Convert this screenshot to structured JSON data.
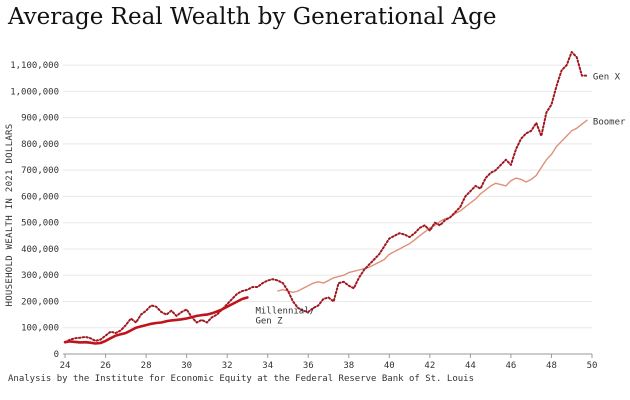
{
  "chart_data": {
    "type": "line",
    "title": "Average Real Wealth by Generational Age",
    "ylabel": "HOUSEHOLD WEALTH IN 2021 DOLLARS",
    "xlabel": "",
    "footnote": "Analysis by the Institute for Economic Equity at the Federal Reserve Bank of St. Louis",
    "xlim": [
      23.9,
      50
    ],
    "ylim": [
      0,
      1150000
    ],
    "xticks": [
      24,
      26,
      28,
      30,
      32,
      34,
      36,
      38,
      40,
      42,
      44,
      46,
      48,
      50
    ],
    "yticks": [
      0,
      100000,
      200000,
      300000,
      400000,
      500000,
      600000,
      700000,
      800000,
      900000,
      1000000,
      1100000
    ],
    "ytick_labels": [
      "0",
      "100,000",
      "200,000",
      "300,000",
      "400,000",
      "500,000",
      "600,000",
      "700,000",
      "800,000",
      "900,000",
      "1,000,000",
      "1,100,000"
    ],
    "grid": "horizontal",
    "legend": "direct-labels",
    "series": [
      {
        "name": "Gen X",
        "style": "dotted",
        "color": "#a01820",
        "x": [
          24.0,
          24.25,
          24.5,
          24.75,
          25.0,
          25.25,
          25.5,
          25.75,
          26.0,
          26.25,
          26.5,
          26.75,
          27.0,
          27.25,
          27.5,
          27.75,
          28.0,
          28.25,
          28.5,
          28.75,
          29.0,
          29.25,
          29.5,
          29.75,
          30.0,
          30.25,
          30.5,
          30.75,
          31.0,
          31.25,
          31.5,
          31.75,
          32.0,
          32.25,
          32.5,
          32.75,
          33.0,
          33.25,
          33.5,
          33.75,
          34.0,
          34.25,
          34.5,
          34.75,
          35.0,
          35.25,
          35.5,
          35.75,
          36.0,
          36.25,
          36.5,
          36.75,
          37.0,
          37.25,
          37.5,
          37.75,
          38.0,
          38.25,
          38.5,
          38.75,
          39.0,
          39.25,
          39.5,
          39.75,
          40.0,
          40.25,
          40.5,
          40.75,
          41.0,
          41.25,
          41.5,
          41.75,
          42.0,
          42.25,
          42.5,
          42.75,
          43.0,
          43.25,
          43.5,
          43.75,
          44.0,
          44.25,
          44.5,
          44.75,
          45.0,
          45.25,
          45.5,
          45.75,
          46.0,
          46.25,
          46.5,
          46.75,
          47.0,
          47.25,
          47.5,
          47.75,
          48.0,
          48.25,
          48.5,
          48.75,
          49.0,
          49.25,
          49.5,
          49.75
        ],
        "values": [
          45000,
          55000,
          60000,
          62000,
          65000,
          60000,
          50000,
          55000,
          70000,
          85000,
          80000,
          90000,
          110000,
          135000,
          120000,
          150000,
          165000,
          185000,
          180000,
          160000,
          150000,
          165000,
          145000,
          160000,
          170000,
          140000,
          120000,
          130000,
          120000,
          140000,
          150000,
          170000,
          190000,
          210000,
          230000,
          240000,
          245000,
          255000,
          255000,
          270000,
          280000,
          285000,
          280000,
          270000,
          240000,
          200000,
          175000,
          165000,
          160000,
          175000,
          185000,
          210000,
          215000,
          200000,
          270000,
          275000,
          260000,
          250000,
          290000,
          320000,
          340000,
          360000,
          380000,
          410000,
          440000,
          450000,
          460000,
          455000,
          445000,
          460000,
          480000,
          490000,
          470000,
          500000,
          490000,
          510000,
          520000,
          540000,
          560000,
          600000,
          620000,
          640000,
          630000,
          670000,
          690000,
          700000,
          720000,
          740000,
          720000,
          780000,
          820000,
          840000,
          850000,
          880000,
          830000,
          920000,
          950000,
          1020000,
          1080000,
          1100000,
          1150000,
          1130000,
          1060000,
          1060000
        ]
      },
      {
        "name": "Boomer",
        "style": "solid-thin",
        "color": "#e0907a",
        "x": [
          34.5,
          34.75,
          35.0,
          35.25,
          35.5,
          35.75,
          36.0,
          36.25,
          36.5,
          36.75,
          37.0,
          37.25,
          37.5,
          37.75,
          38.0,
          38.25,
          38.5,
          38.75,
          39.0,
          39.25,
          39.5,
          39.75,
          40.0,
          40.25,
          40.5,
          40.75,
          41.0,
          41.25,
          41.5,
          41.75,
          42.0,
          42.25,
          42.5,
          42.75,
          43.0,
          43.25,
          43.5,
          43.75,
          44.0,
          44.25,
          44.5,
          44.75,
          45.0,
          45.25,
          45.5,
          45.75,
          46.0,
          46.25,
          46.5,
          46.75,
          47.0,
          47.25,
          47.5,
          47.75,
          48.0,
          48.25,
          48.5,
          48.75,
          49.0,
          49.25,
          49.5,
          49.75
        ],
        "values": [
          240000,
          245000,
          240000,
          235000,
          240000,
          250000,
          260000,
          270000,
          275000,
          270000,
          280000,
          290000,
          295000,
          300000,
          310000,
          315000,
          320000,
          325000,
          330000,
          340000,
          350000,
          360000,
          380000,
          390000,
          400000,
          410000,
          420000,
          435000,
          450000,
          465000,
          480000,
          490000,
          505000,
          515000,
          520000,
          535000,
          545000,
          560000,
          575000,
          590000,
          610000,
          625000,
          640000,
          650000,
          645000,
          640000,
          660000,
          670000,
          665000,
          655000,
          665000,
          680000,
          710000,
          740000,
          760000,
          790000,
          810000,
          830000,
          850000,
          860000,
          875000,
          890000
        ]
      },
      {
        "name": "Millennial/ Gen Z",
        "style": "solid-thick",
        "color": "#c0141c",
        "x": [
          24.0,
          24.25,
          24.5,
          24.75,
          25.0,
          25.25,
          25.5,
          25.75,
          26.0,
          26.25,
          26.5,
          26.75,
          27.0,
          27.25,
          27.5,
          27.75,
          28.0,
          28.25,
          28.5,
          28.75,
          29.0,
          29.25,
          29.5,
          29.75,
          30.0,
          30.25,
          30.5,
          30.75,
          31.0,
          31.25,
          31.5,
          31.75,
          32.0,
          32.25,
          32.5,
          32.75,
          33.0
        ],
        "values": [
          45000,
          48000,
          46000,
          44000,
          45000,
          43000,
          40000,
          42000,
          50000,
          60000,
          70000,
          75000,
          80000,
          90000,
          100000,
          105000,
          110000,
          115000,
          118000,
          120000,
          125000,
          128000,
          130000,
          132000,
          135000,
          140000,
          145000,
          148000,
          150000,
          155000,
          162000,
          170000,
          180000,
          190000,
          200000,
          210000,
          215000
        ]
      }
    ],
    "series_labels": [
      {
        "lines": [
          "Gen X"
        ]
      },
      {
        "lines": [
          "Boomer"
        ]
      },
      {
        "lines": [
          "Millennial/",
          "Gen Z"
        ]
      }
    ]
  }
}
